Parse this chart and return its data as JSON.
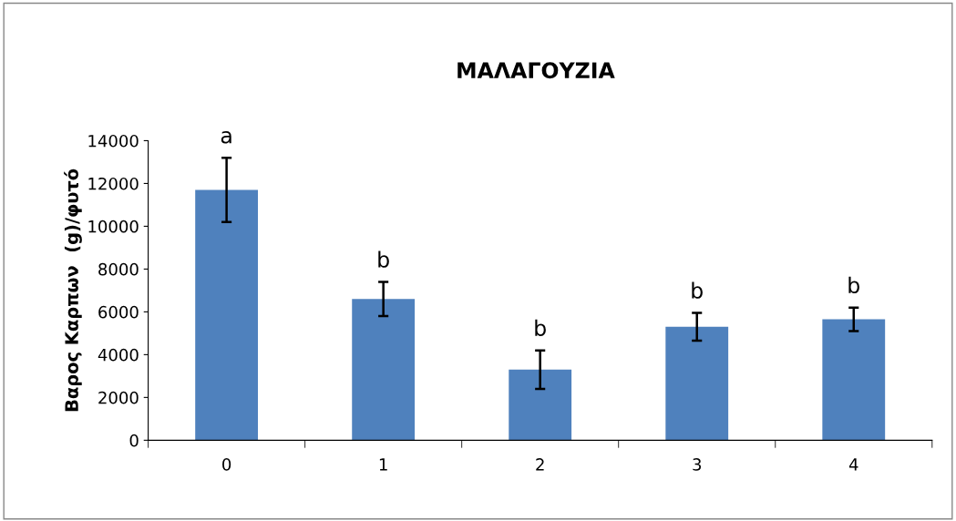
{
  "chart_data": {
    "type": "bar",
    "title": "ΜΑΛΑΓΟΥΖΙΑ",
    "ylabel": "Βαρος Καρπων  (g)/φυτό",
    "categories": [
      "0",
      "1",
      "2",
      "3",
      "4"
    ],
    "values": [
      11700,
      6600,
      3300,
      5300,
      5650
    ],
    "errors": [
      1500,
      800,
      900,
      650,
      550
    ],
    "color": "#4f81bd",
    "ylim": [
      0,
      14000
    ],
    "yticks": [
      0,
      2000,
      4000,
      6000,
      8000,
      10000,
      12000,
      14000
    ],
    "grid": false,
    "legend": false,
    "annotations": [
      {
        "text": "a",
        "x": "0",
        "y": 13200
      },
      {
        "text": "b",
        "x": "1",
        "y": 7400
      },
      {
        "text": "b",
        "x": "2",
        "y": 4200
      },
      {
        "text": "b",
        "x": "3",
        "y": 5950
      },
      {
        "text": "b",
        "x": "4",
        "y": 6200
      }
    ]
  }
}
